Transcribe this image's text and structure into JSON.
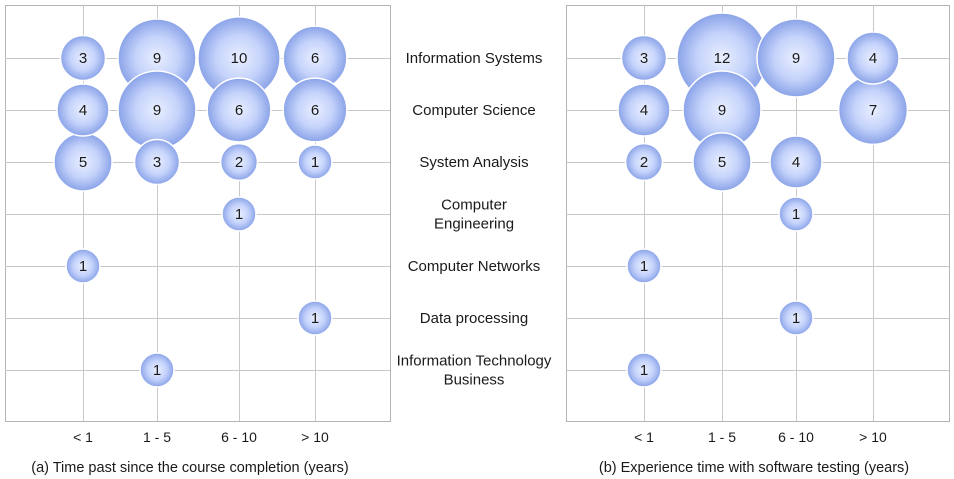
{
  "categories": [
    [
      "Information Systems"
    ],
    [
      "Computer Science"
    ],
    [
      "System Analysis"
    ],
    [
      "Computer",
      "Engineering"
    ],
    [
      "Computer Networks"
    ],
    [
      "Data processing"
    ],
    [
      "Information Technology",
      "Business"
    ]
  ],
  "colors": {
    "bubble_center": "#e9efff",
    "bubble_edge": "#8aa3e8",
    "grid": "#c8c8c8",
    "frame": "#b4b4b4"
  },
  "chart_data": [
    {
      "type": "scatter",
      "subtype": "bubble",
      "title": "(a) Time past since the course completion (years)",
      "x_categories": [
        "< 1",
        "1 - 5",
        "6 - 10",
        "> 10"
      ],
      "y_categories": [
        "Information Systems",
        "Computer Science",
        "System Analysis",
        "Computer Engineering",
        "Computer Networks",
        "Data processing",
        "Information Technology Business"
      ],
      "points": [
        {
          "x": "< 1",
          "y": "Information Systems",
          "value": 3
        },
        {
          "x": "1 - 5",
          "y": "Information Systems",
          "value": 9
        },
        {
          "x": "6 - 10",
          "y": "Information Systems",
          "value": 10
        },
        {
          "x": "> 10",
          "y": "Information Systems",
          "value": 6
        },
        {
          "x": "< 1",
          "y": "Computer Science",
          "value": 4
        },
        {
          "x": "1 - 5",
          "y": "Computer Science",
          "value": 9
        },
        {
          "x": "6 - 10",
          "y": "Computer Science",
          "value": 6
        },
        {
          "x": "> 10",
          "y": "Computer Science",
          "value": 6
        },
        {
          "x": "< 1",
          "y": "System Analysis",
          "value": 5
        },
        {
          "x": "1 - 5",
          "y": "System Analysis",
          "value": 3
        },
        {
          "x": "6 - 10",
          "y": "System Analysis",
          "value": 2
        },
        {
          "x": "> 10",
          "y": "System Analysis",
          "value": 1
        },
        {
          "x": "6 - 10",
          "y": "Computer Engineering",
          "value": 1
        },
        {
          "x": "< 1",
          "y": "Computer Networks",
          "value": 1
        },
        {
          "x": "> 10",
          "y": "Data processing",
          "value": 1
        },
        {
          "x": "1 - 5",
          "y": "Information Technology Business",
          "value": 1
        }
      ]
    },
    {
      "type": "scatter",
      "subtype": "bubble",
      "title": "(b) Experience time with software testing (years)",
      "x_categories": [
        "< 1",
        "1 - 5",
        "6 - 10",
        "> 10"
      ],
      "y_categories": [
        "Information Systems",
        "Computer Science",
        "System Analysis",
        "Computer Engineering",
        "Computer Networks",
        "Data processing",
        "Information Technology Business"
      ],
      "points": [
        {
          "x": "< 1",
          "y": "Information Systems",
          "value": 3
        },
        {
          "x": "1 - 5",
          "y": "Information Systems",
          "value": 12
        },
        {
          "x": "6 - 10",
          "y": "Information Systems",
          "value": 9
        },
        {
          "x": "> 10",
          "y": "Information Systems",
          "value": 4
        },
        {
          "x": "< 1",
          "y": "Computer Science",
          "value": 4
        },
        {
          "x": "1 - 5",
          "y": "Computer Science",
          "value": 9
        },
        {
          "x": "> 10",
          "y": "Computer Science",
          "value": 7
        },
        {
          "x": "< 1",
          "y": "System Analysis",
          "value": 2
        },
        {
          "x": "1 - 5",
          "y": "System Analysis",
          "value": 5
        },
        {
          "x": "6 - 10",
          "y": "System Analysis",
          "value": 4
        },
        {
          "x": "6 - 10",
          "y": "Computer Engineering",
          "value": 1
        },
        {
          "x": "< 1",
          "y": "Computer Networks",
          "value": 1
        },
        {
          "x": "6 - 10",
          "y": "Data processing",
          "value": 1
        },
        {
          "x": "< 1",
          "y": "Information Technology Business",
          "value": 1
        }
      ]
    }
  ]
}
